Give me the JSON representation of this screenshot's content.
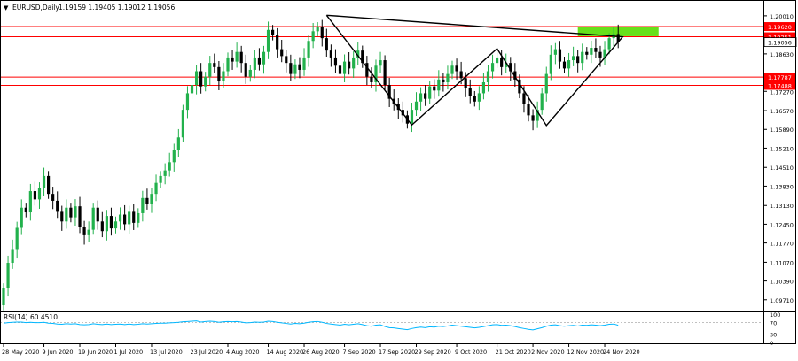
{
  "symbol_header": {
    "dropdown_glyph": "▼",
    "symbol": "EURUSD,Daily",
    "ohlc": "1.19159 1.19405 1.19012 1.19056"
  },
  "rsi_header": {
    "label": "RSI(14) 60.4510"
  },
  "colors": {
    "bull": "#22b14c",
    "bear": "#000000",
    "level_line": "#ff0000",
    "target_zone": "#66e01a",
    "price_tag_bg": "#ff0000",
    "current_tag_bg": "#ffffff",
    "rsi_line": "#00b7ff",
    "pattern_line": "#000000"
  },
  "chart_data": {
    "type": "candlestick",
    "symbol": "EURUSD",
    "timeframe": "Daily",
    "price_axis": {
      "range": [
        1.0935,
        1.2052
      ],
      "tick_labels": [
        "1.20010",
        "1.18630",
        "1.17270",
        "1.16570",
        "1.15890",
        "1.15210",
        "1.14510",
        "1.13830",
        "1.13130",
        "1.12450",
        "1.11770",
        "1.11070",
        "1.10390",
        "1.09710"
      ]
    },
    "level_lines": [
      {
        "price": 1.1962,
        "label": "1.19620"
      },
      {
        "price": 1.19251,
        "label": "1.19251"
      },
      {
        "price": 1.17787,
        "label": "1.17787"
      },
      {
        "price": 1.17488,
        "label": "1.17488"
      }
    ],
    "current_price": {
      "price": 1.19056,
      "label": "1.19056"
    },
    "target_zone": {
      "x_start": 128,
      "x_end": 146,
      "price_low": 1.1927,
      "price_high": 1.1962
    },
    "pattern_points": [
      {
        "x": 72,
        "price": 1.2003
      },
      {
        "x": 91,
        "price": 1.1605
      },
      {
        "x": 110,
        "price": 1.1882
      },
      {
        "x": 121,
        "price": 1.1603
      },
      {
        "x": 138,
        "price": 1.1925
      },
      {
        "x": 72,
        "price": 1.2003
      }
    ],
    "x_axis_labels": [
      {
        "x": 0,
        "label": "28 May 2020"
      },
      {
        "x": 9,
        "label": "9 Jun 2020"
      },
      {
        "x": 17,
        "label": "19 Jun 2020"
      },
      {
        "x": 25,
        "label": "1 Jul 2020"
      },
      {
        "x": 33,
        "label": "13 Jul 2020"
      },
      {
        "x": 42,
        "label": "23 Jul 2020"
      },
      {
        "x": 50,
        "label": "4 Aug 2020"
      },
      {
        "x": 59,
        "label": "14 Aug 2020"
      },
      {
        "x": 67,
        "label": "26 Aug 2020"
      },
      {
        "x": 76,
        "label": "7 Sep 2020"
      },
      {
        "x": 84,
        "label": "17 Sep 2020"
      },
      {
        "x": 92,
        "label": "29 Sep 2020"
      },
      {
        "x": 101,
        "label": "9 Oct 2020"
      },
      {
        "x": 110,
        "label": "21 Oct 2020"
      },
      {
        "x": 118,
        "label": "2 Nov 2020"
      },
      {
        "x": 126,
        "label": "12 Nov 2020"
      },
      {
        "x": 134,
        "label": "24 Nov 2020"
      }
    ],
    "closes": [
      1.1013,
      1.1105,
      1.1155,
      1.1232,
      1.1305,
      1.1288,
      1.1365,
      1.1335,
      1.1375,
      1.142,
      1.1355,
      1.133,
      1.129,
      1.1255,
      1.1305,
      1.127,
      1.131,
      1.1235,
      1.1205,
      1.1225,
      1.1305,
      1.1255,
      1.122,
      1.1275,
      1.123,
      1.1255,
      1.128,
      1.1245,
      1.129,
      1.125,
      1.1285,
      1.134,
      1.132,
      1.1355,
      1.1395,
      1.142,
      1.144,
      1.147,
      1.1515,
      1.156,
      1.166,
      1.172,
      1.175,
      1.18,
      1.1745,
      1.178,
      1.183,
      1.1815,
      1.1765,
      1.18,
      1.185,
      1.1835,
      1.187,
      1.183,
      1.178,
      1.1805,
      1.185,
      1.1825,
      1.187,
      1.195,
      1.193,
      1.188,
      1.1855,
      1.183,
      1.179,
      1.1825,
      1.1805,
      1.185,
      1.191,
      1.1945,
      1.196,
      1.192,
      1.1875,
      1.185,
      1.182,
      1.179,
      1.1835,
      1.181,
      1.185,
      1.1875,
      1.183,
      1.178,
      1.176,
      1.182,
      1.184,
      1.175,
      1.17,
      1.168,
      1.166,
      1.164,
      1.161,
      1.166,
      1.169,
      1.172,
      1.17,
      1.1745,
      1.173,
      1.177,
      1.176,
      1.179,
      1.182,
      1.18,
      1.1775,
      1.174,
      1.171,
      1.169,
      1.172,
      1.176,
      1.18,
      1.183,
      1.185,
      1.1815,
      1.183,
      1.18,
      1.177,
      1.172,
      1.168,
      1.164,
      1.162,
      1.166,
      1.172,
      1.179,
      1.186,
      1.188,
      1.1835,
      1.181,
      1.184,
      1.1855,
      1.183,
      1.187,
      1.186,
      1.1885,
      1.187,
      1.185,
      1.188,
      1.192,
      1.1935,
      1.1906
    ],
    "rsi_panel": {
      "tick_labels": [
        "100",
        "70",
        "30",
        "0"
      ],
      "level_lines": [
        70,
        30
      ],
      "values": [
        68,
        70,
        71,
        72,
        72,
        70,
        71,
        70,
        70,
        71,
        68,
        67,
        65,
        64,
        66,
        65,
        66,
        63,
        62,
        63,
        66,
        64,
        63,
        65,
        63,
        64,
        65,
        63,
        65,
        63,
        64,
        66,
        65,
        66,
        67,
        68,
        68,
        69,
        70,
        71,
        73,
        74,
        75,
        76,
        72,
        74,
        75,
        74,
        71,
        73,
        74,
        73,
        74,
        72,
        69,
        70,
        72,
        71,
        72,
        75,
        74,
        71,
        69,
        67,
        65,
        67,
        66,
        68,
        71,
        73,
        74,
        71,
        67,
        65,
        63,
        61,
        64,
        62,
        64,
        66,
        63,
        59,
        57,
        61,
        62,
        56,
        52,
        51,
        49,
        47,
        45,
        49,
        52,
        54,
        52,
        55,
        54,
        57,
        56,
        58,
        61,
        59,
        57,
        55,
        53,
        51,
        53,
        56,
        59,
        62,
        63,
        60,
        61,
        59,
        56,
        52,
        49,
        46,
        44,
        48,
        52,
        57,
        61,
        62,
        59,
        57,
        59,
        60,
        58,
        61,
        60,
        62,
        61,
        59,
        61,
        64,
        65,
        60.45
      ]
    }
  }
}
